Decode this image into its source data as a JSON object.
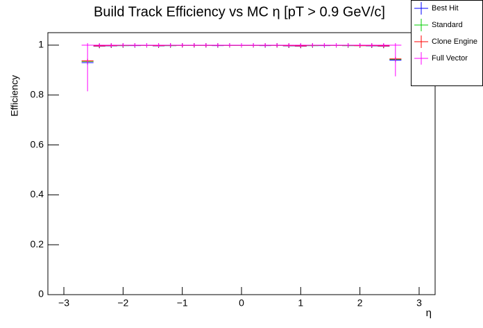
{
  "chart_data": {
    "type": "errorbar",
    "title": "Build Track Efficiency vs MC η [pT > 0.9 GeV/c]",
    "x_label": "η",
    "y_label": "Efficiency",
    "xlim": [
      -3.27,
      3.27
    ],
    "ylim": [
      0,
      1.05
    ],
    "xticks": [
      {
        "value": -3,
        "label": "−3"
      },
      {
        "value": -2,
        "label": "−2"
      },
      {
        "value": -1,
        "label": "−1"
      },
      0,
      1,
      2,
      3
    ],
    "yticks": [
      0,
      0.2,
      0.4,
      0.6,
      0.8,
      1
    ],
    "bin_width": 0.2,
    "x": [
      -2.6,
      -2.4,
      -2.2,
      -2.0,
      -1.8,
      -1.6,
      -1.4,
      -1.2,
      -1.0,
      -0.8,
      -0.6,
      -0.4,
      -0.2,
      0,
      0.2,
      0.4,
      0.6,
      0.8,
      1.0,
      1.2,
      1.4,
      1.6,
      1.8,
      2.0,
      2.2,
      2.4,
      2.6
    ],
    "series": [
      {
        "name": "Best Hit",
        "color": "#0000ff",
        "values": [
          0.93,
          0.996,
          0.997,
          0.998,
          0.998,
          0.999,
          0.997,
          0.998,
          0.999,
          0.999,
          0.999,
          0.998,
          0.999,
          0.999,
          0.999,
          0.998,
          0.999,
          0.997,
          0.996,
          0.998,
          0.998,
          0.999,
          0.998,
          0.998,
          0.997,
          0.996,
          0.94
        ]
      },
      {
        "name": "Standard",
        "color": "#00cc00",
        "values": [
          0.935,
          0.997,
          0.998,
          0.998,
          0.999,
          0.999,
          0.998,
          0.998,
          0.999,
          0.999,
          0.999,
          0.999,
          0.999,
          0.999,
          0.999,
          0.999,
          0.999,
          0.998,
          0.997,
          0.998,
          0.999,
          0.999,
          0.998,
          0.998,
          0.998,
          0.997,
          0.943
        ]
      },
      {
        "name": "Clone Engine",
        "color": "#ff0000",
        "values": [
          0.937,
          0.997,
          0.998,
          0.999,
          0.999,
          0.999,
          0.998,
          0.999,
          0.999,
          0.999,
          0.999,
          0.999,
          0.999,
          0.999,
          0.999,
          0.999,
          0.999,
          0.998,
          0.997,
          0.999,
          0.999,
          0.999,
          0.999,
          0.998,
          0.998,
          0.997,
          0.945
        ]
      },
      {
        "name": "Full Vector",
        "color": "#ff00ff",
        "values": [
          1,
          1,
          1,
          1,
          1,
          1,
          1,
          1,
          1,
          1,
          1,
          1,
          1,
          1,
          1,
          1,
          1,
          1,
          1,
          1,
          1,
          1,
          1,
          1,
          1,
          1,
          1
        ],
        "lower_errors": [
          0.185,
          0,
          0,
          0,
          0,
          0,
          0,
          0,
          0,
          0,
          0,
          0,
          0,
          0,
          0,
          0,
          0,
          0,
          0,
          0,
          0,
          0,
          0,
          0,
          0,
          0,
          0.125
        ]
      }
    ]
  }
}
